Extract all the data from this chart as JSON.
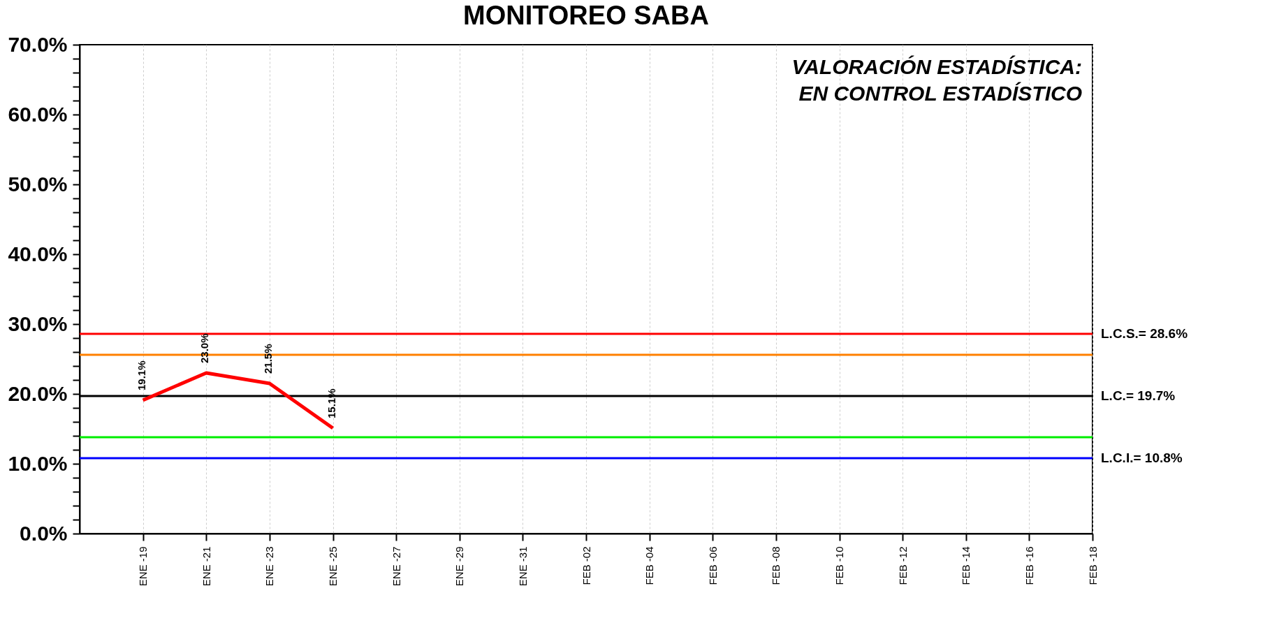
{
  "chart_data": {
    "type": "line",
    "title": "MONITOREO SABA",
    "annotations": [
      "VALORACIÓN ESTADÍSTICA:",
      "EN CONTROL ESTADÍSTICO"
    ],
    "x": [
      "--01-19",
      "--01-21",
      "--01-23",
      "--01-25"
    ],
    "series": [
      {
        "color": "#ff0000",
        "values": [
          19.1,
          23.0,
          21.5,
          15.1
        ],
        "value_labels": [
          "19.1%",
          "23.0%",
          "21.5%",
          "15.1%"
        ]
      }
    ],
    "xlim": [
      "--01-17",
      "--02-18"
    ],
    "xticks": [
      {
        "value": "--01-19",
        "label": "ENE -19"
      },
      {
        "value": "--01-21",
        "label": "ENE -21"
      },
      {
        "value": "--01-23",
        "label": "ENE -23"
      },
      {
        "value": "--01-25",
        "label": "ENE -25"
      },
      {
        "value": "--01-27",
        "label": "ENE -27"
      },
      {
        "value": "--01-29",
        "label": "ENE -29"
      },
      {
        "value": "--01-31",
        "label": "ENE -31"
      },
      {
        "value": "--02-02",
        "label": "FEB -02"
      },
      {
        "value": "--02-04",
        "label": "FEB -04"
      },
      {
        "value": "--02-06",
        "label": "FEB -06"
      },
      {
        "value": "--02-08",
        "label": "FEB -08"
      },
      {
        "value": "--02-10",
        "label": "FEB -10"
      },
      {
        "value": "--02-12",
        "label": "FEB -12"
      },
      {
        "value": "--02-14",
        "label": "FEB -14"
      },
      {
        "value": "--02-16",
        "label": "FEB -16"
      },
      {
        "value": "--02-18",
        "label": "FEB -18"
      }
    ],
    "ylim": [
      0,
      70
    ],
    "yticks": [
      {
        "value": 0,
        "label": "0.0%"
      },
      {
        "value": 2,
        "label": null
      },
      {
        "value": 4,
        "label": null
      },
      {
        "value": 6,
        "label": null
      },
      {
        "value": 8,
        "label": null
      },
      {
        "value": 10,
        "label": "10.0%"
      },
      {
        "value": 12,
        "label": null
      },
      {
        "value": 14,
        "label": null
      },
      {
        "value": 16,
        "label": null
      },
      {
        "value": 18,
        "label": null
      },
      {
        "value": 20,
        "label": "20.0%"
      },
      {
        "value": 22,
        "label": null
      },
      {
        "value": 24,
        "label": null
      },
      {
        "value": 26,
        "label": null
      },
      {
        "value": 28,
        "label": null
      },
      {
        "value": 30,
        "label": "30.0%"
      },
      {
        "value": 32,
        "label": null
      },
      {
        "value": 34,
        "label": null
      },
      {
        "value": 36,
        "label": null
      },
      {
        "value": 38,
        "label": null
      },
      {
        "value": 40,
        "label": "40.0%"
      },
      {
        "value": 42,
        "label": null
      },
      {
        "value": 44,
        "label": null
      },
      {
        "value": 46,
        "label": null
      },
      {
        "value": 48,
        "label": null
      },
      {
        "value": 50,
        "label": "50.0%"
      },
      {
        "value": 52,
        "label": null
      },
      {
        "value": 54,
        "label": null
      },
      {
        "value": 56,
        "label": null
      },
      {
        "value": 58,
        "label": null
      },
      {
        "value": 60,
        "label": "60.0%"
      },
      {
        "value": 62,
        "label": null
      },
      {
        "value": 64,
        "label": null
      },
      {
        "value": 66,
        "label": null
      },
      {
        "value": 68,
        "label": null
      },
      {
        "value": 70,
        "label": "70.0%"
      }
    ],
    "ref_lines": [
      {
        "axis": "y",
        "value": 28.6,
        "label": "L.C.S.= 28.6%",
        "color": "#ff0000"
      },
      {
        "axis": "y",
        "value": 25.6,
        "color": "#ff8000"
      },
      {
        "axis": "y",
        "value": 19.7,
        "label": "L.C.= 19.7%",
        "color": "#000000"
      },
      {
        "axis": "y",
        "value": 13.8,
        "color": "#00ee00"
      },
      {
        "axis": "y",
        "value": 10.8,
        "label": "L.C.I.= 10.8%",
        "color": "#0000ff"
      }
    ],
    "grid": "x",
    "marker": "none",
    "line_style": "solid"
  }
}
